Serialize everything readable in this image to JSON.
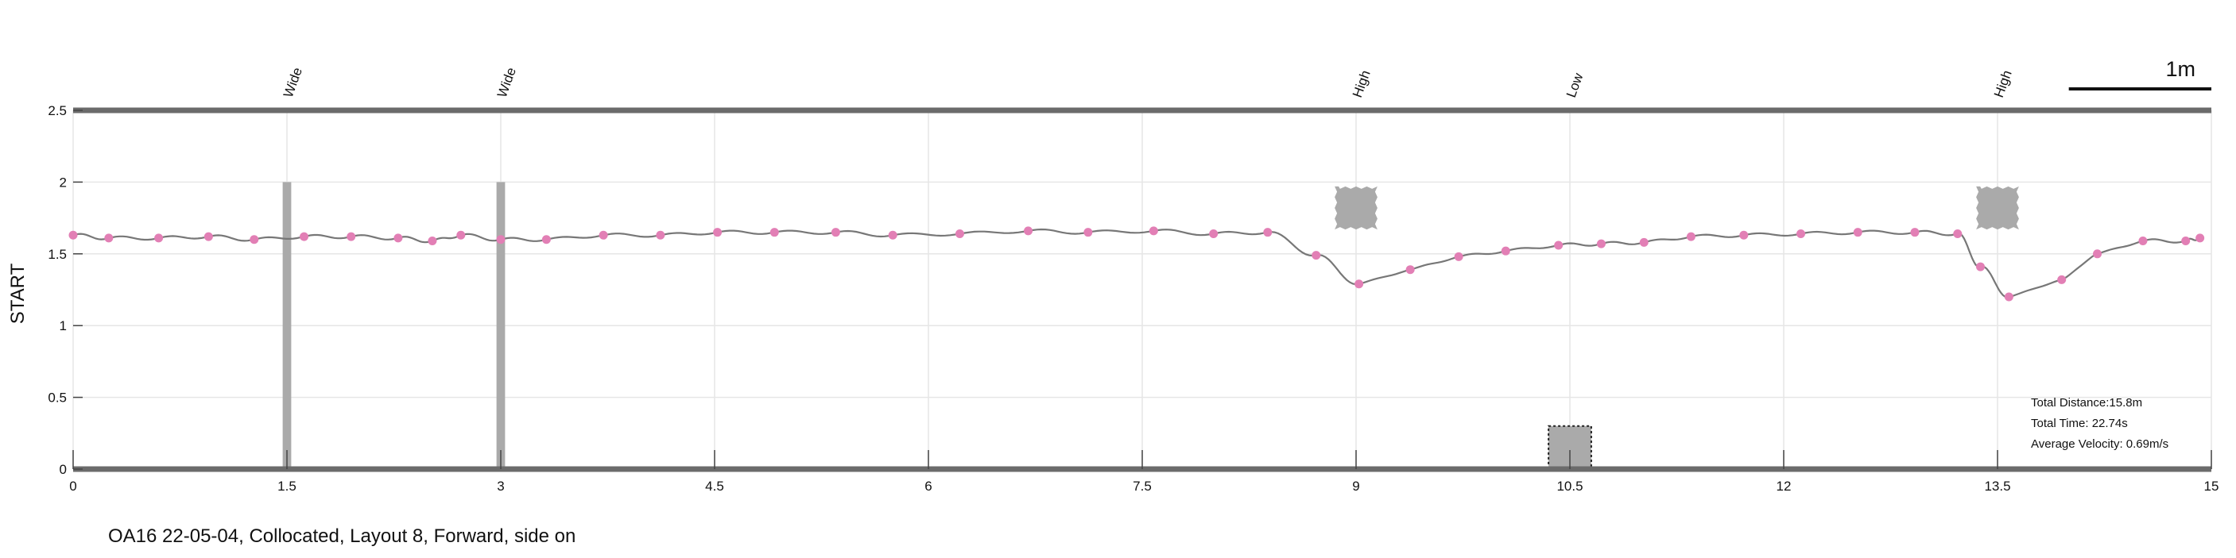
{
  "caption": "OA16 22-05-04, Collocated, Layout 8, Forward, side on",
  "chart_data": {
    "type": "line",
    "ylabel": "START",
    "xlim": [
      0,
      15
    ],
    "ylim": [
      0,
      2.5
    ],
    "x_ticks": [
      0,
      1.5,
      3,
      4.5,
      6,
      7.5,
      9,
      10.5,
      12,
      13.5,
      15
    ],
    "x_tick_labels": [
      "0",
      "1.5",
      "3",
      "4.5",
      "6",
      "7.5",
      "9",
      "10.5",
      "12",
      "13.5",
      "15"
    ],
    "y_ticks": [
      0,
      0.5,
      1,
      1.5,
      2,
      2.5
    ],
    "y_tick_labels": [
      "0",
      "0.5",
      "1",
      "1.5",
      "2",
      "2.5"
    ],
    "grid": true,
    "line_color": "#777777",
    "marker_color": "#e27fb5",
    "obstacle_color": "#aaaaaa",
    "series": [
      {
        "x": [
          0,
          0.25,
          0.6,
          0.95,
          1.27,
          1.62,
          1.95,
          2.28,
          2.52,
          2.72,
          3.0,
          3.32,
          3.72,
          4.12,
          4.52,
          4.92,
          5.35,
          5.75,
          6.22,
          6.7,
          7.12,
          7.58,
          8.0,
          8.38,
          8.72,
          9.02,
          9.38,
          9.72,
          10.05,
          10.42,
          10.72,
          11.02,
          11.35,
          11.72,
          12.12,
          12.52,
          12.92,
          13.22,
          13.38,
          13.58,
          13.95,
          14.2,
          14.52,
          14.82,
          14.92
        ],
        "y": [
          1.63,
          1.61,
          1.61,
          1.62,
          1.6,
          1.62,
          1.62,
          1.61,
          1.59,
          1.63,
          1.6,
          1.6,
          1.63,
          1.63,
          1.65,
          1.65,
          1.65,
          1.63,
          1.64,
          1.66,
          1.65,
          1.66,
          1.64,
          1.65,
          1.49,
          1.29,
          1.39,
          1.48,
          1.52,
          1.56,
          1.57,
          1.58,
          1.62,
          1.63,
          1.64,
          1.65,
          1.65,
          1.64,
          1.41,
          1.2,
          1.32,
          1.5,
          1.59,
          1.59,
          1.61
        ]
      }
    ],
    "obstacles": [
      {
        "type": "pole",
        "label": "Wide",
        "x": 1.5,
        "x0": 1.47,
        "x1": 1.53,
        "y0": 0,
        "y1": 2.0
      },
      {
        "type": "pole",
        "label": "Wide",
        "x": 3.0,
        "x0": 2.97,
        "x1": 3.03,
        "y0": 0,
        "y1": 2.0
      },
      {
        "type": "block",
        "label": "High",
        "x": 9.0,
        "x0": 8.85,
        "x1": 9.15,
        "y0": 1.67,
        "y1": 1.97
      },
      {
        "type": "box",
        "label": "Low",
        "x": 10.5,
        "x0": 10.35,
        "x1": 10.65,
        "y0": 0,
        "y1": 0.3
      },
      {
        "type": "block",
        "label": "High",
        "x": 13.5,
        "x0": 13.35,
        "x1": 13.65,
        "y0": 1.67,
        "y1": 1.97
      }
    ],
    "scale_bar": {
      "label": "1m",
      "length_m": 1
    },
    "stats": [
      "Total Distance:15.8m",
      "Total Time: 22.74s",
      "Average Velocity: 0.69m/s"
    ]
  }
}
